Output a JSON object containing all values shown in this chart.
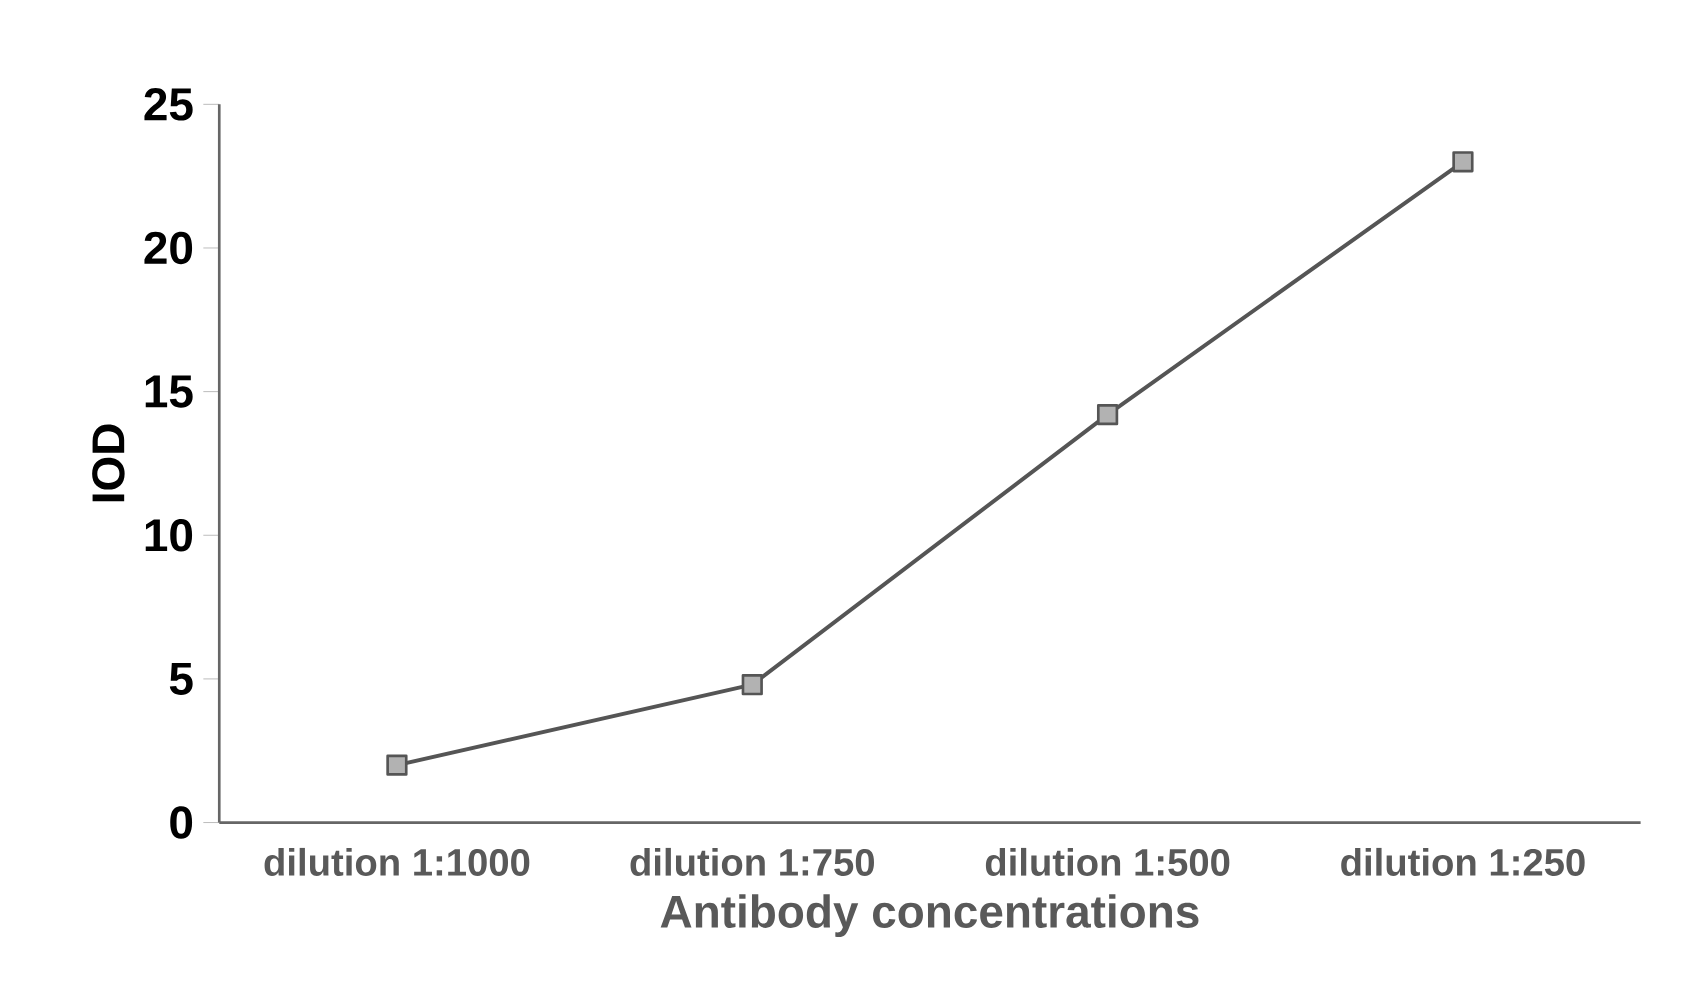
{
  "chart_data": {
    "type": "line",
    "xlabel": "Antibody concentrations",
    "ylabel": "IOD",
    "categories": [
      "dilution 1:1000",
      "dilution 1:750",
      "dilution 1:500",
      "dilution 1:250"
    ],
    "values": [
      2,
      4.8,
      14.2,
      23
    ],
    "color": "#555555",
    "marker": "square",
    "ylim": [
      0,
      25
    ],
    "yticks": [
      0,
      5,
      10,
      15,
      20,
      25
    ],
    "grid": false
  }
}
